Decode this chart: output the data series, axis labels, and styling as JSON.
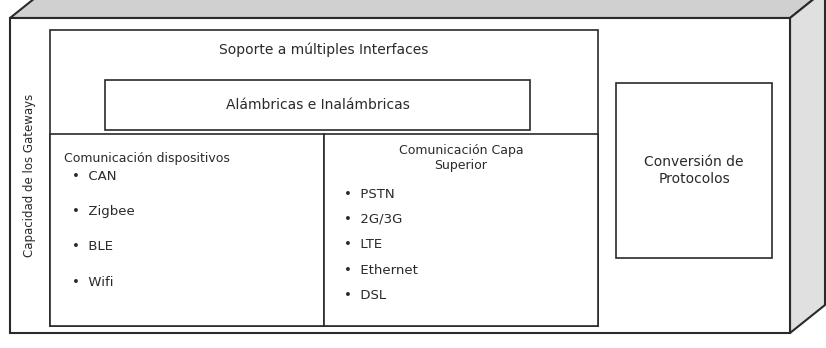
{
  "white": "#ffffff",
  "dark": "#2a2a2a",
  "gray_top": "#d0d0d0",
  "gray_right": "#e0e0e0",
  "figsize": [
    8.26,
    3.48
  ],
  "dpi": 100,
  "left_label": "Capacidad de los Gateways",
  "soporte_text": "Soporte a múltiples Interfaces",
  "alambricas_text": "Alámbricas e Inalámbricas",
  "comm_disp_title": "Comunicación dispositivos",
  "comm_disp_items": [
    "CAN",
    "Zigbee",
    "BLE",
    "Wifi"
  ],
  "comm_capa_title": "Comunicación Capa\nSuperior",
  "comm_capa_items": [
    "PSTN",
    "2G/3G",
    "LTE",
    "Ethernet",
    "DSL"
  ],
  "conversion_text": "Conversión de\nProtocolos"
}
